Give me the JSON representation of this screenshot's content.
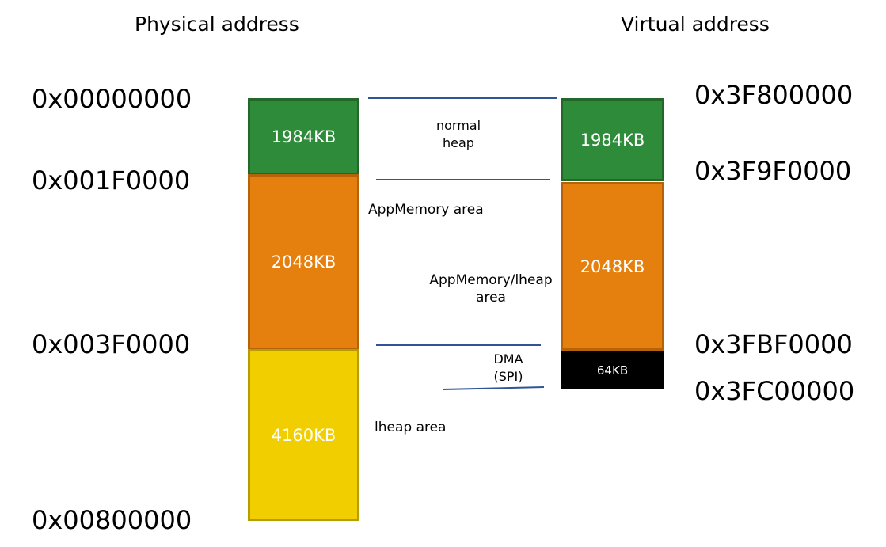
{
  "headers": {
    "physical": "Physical address",
    "virtual": "Virtual address"
  },
  "physical": {
    "addresses": [
      "0x00000000",
      "0x001F0000",
      "0x003F0000",
      "0x00800000"
    ],
    "blocks": [
      {
        "label": "1984KB",
        "color": "#2E8B3A",
        "border": "#23672B"
      },
      {
        "label": "2048KB",
        "color": "#E5800E",
        "border": "#B4630B"
      },
      {
        "label": "4160KB",
        "color": "#F0CE00",
        "border": "#B79C00"
      }
    ]
  },
  "virtual": {
    "addresses": [
      "0x3F800000",
      "0x3F9F0000",
      "0x3FBF0000",
      "0x3FC00000"
    ],
    "blocks": [
      {
        "label": "1984KB",
        "color": "#2E8B3A",
        "border": "#23672B"
      },
      {
        "label": "2048KB",
        "color": "#E5800E",
        "border": "#B4630B"
      },
      {
        "label": "64KB",
        "color": "#000000",
        "border": "#000000"
      }
    ]
  },
  "regions": {
    "normal_heap": [
      "normal",
      "heap"
    ],
    "appmemory_area": "AppMemory area",
    "appmemory_lheap": [
      "AppMemory/lheap",
      "area"
    ],
    "dma": [
      "DMA",
      "(SPI)"
    ],
    "lheap_area": "lheap area"
  },
  "line_color": "#2F5597"
}
